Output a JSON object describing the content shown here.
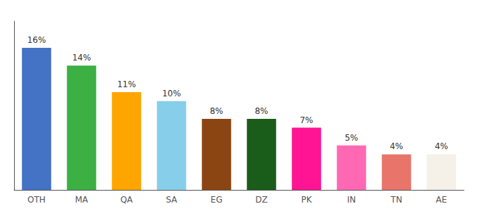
{
  "chart_data": {
    "type": "bar",
    "categories": [
      "OTH",
      "MA",
      "QA",
      "SA",
      "EG",
      "DZ",
      "PK",
      "IN",
      "TN",
      "AE"
    ],
    "values": [
      16,
      14,
      11,
      10,
      8,
      8,
      7,
      5,
      4,
      4
    ],
    "value_labels": [
      "16%",
      "14%",
      "11%",
      "10%",
      "8%",
      "8%",
      "7%",
      "5%",
      "4%",
      "4%"
    ],
    "colors": [
      "#4472C4",
      "#3CB043",
      "#FFA500",
      "#87CEEB",
      "#8B4513",
      "#1A5C1A",
      "#FF1493",
      "#FF69B4",
      "#E8746A",
      "#F5F0E8"
    ],
    "ylim": [
      0,
      19
    ],
    "data_labels": true,
    "tick_labels": "x",
    "grid": false
  }
}
